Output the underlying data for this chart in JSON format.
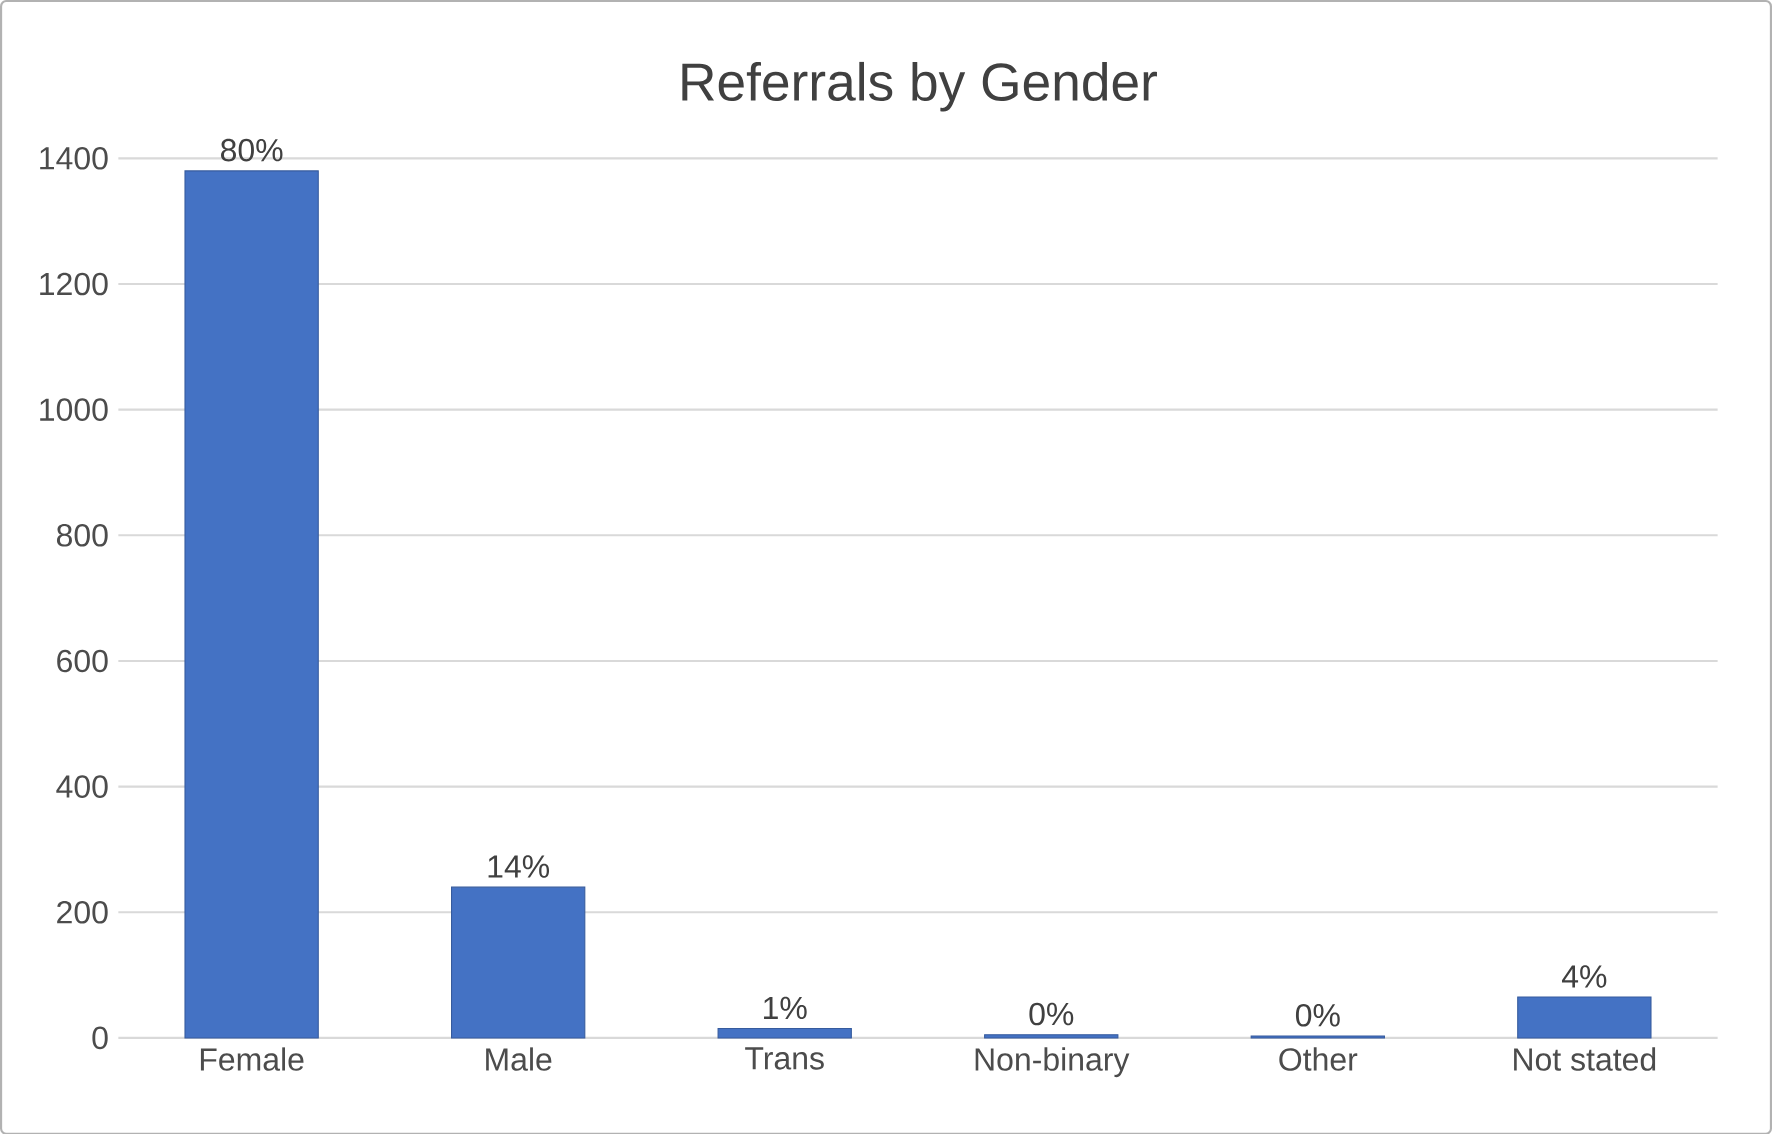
{
  "chart_data": {
    "type": "bar",
    "title": "Referrals by Gender",
    "categories": [
      "Female",
      "Male",
      "Trans",
      "Non-binary",
      "Other",
      "Not stated"
    ],
    "values": [
      1380,
      240,
      15,
      5,
      3,
      65
    ],
    "annotations": [
      {
        "text": "80%",
        "x": "Female",
        "y": 1380
      },
      {
        "text": "14%",
        "x": "Male",
        "y": 240
      },
      {
        "text": "1%",
        "x": "Trans",
        "y": 15
      },
      {
        "text": "0%",
        "x": "Non-binary",
        "y": 5
      },
      {
        "text": "0%",
        "x": "Other",
        "y": 3
      },
      {
        "text": "4%",
        "x": "Not stated",
        "y": 65
      }
    ],
    "color": "#4472c4",
    "ylim": [
      0,
      1400
    ],
    "yticks": [
      0,
      200,
      400,
      600,
      800,
      1000,
      1200,
      1400
    ],
    "grid": "y"
  }
}
